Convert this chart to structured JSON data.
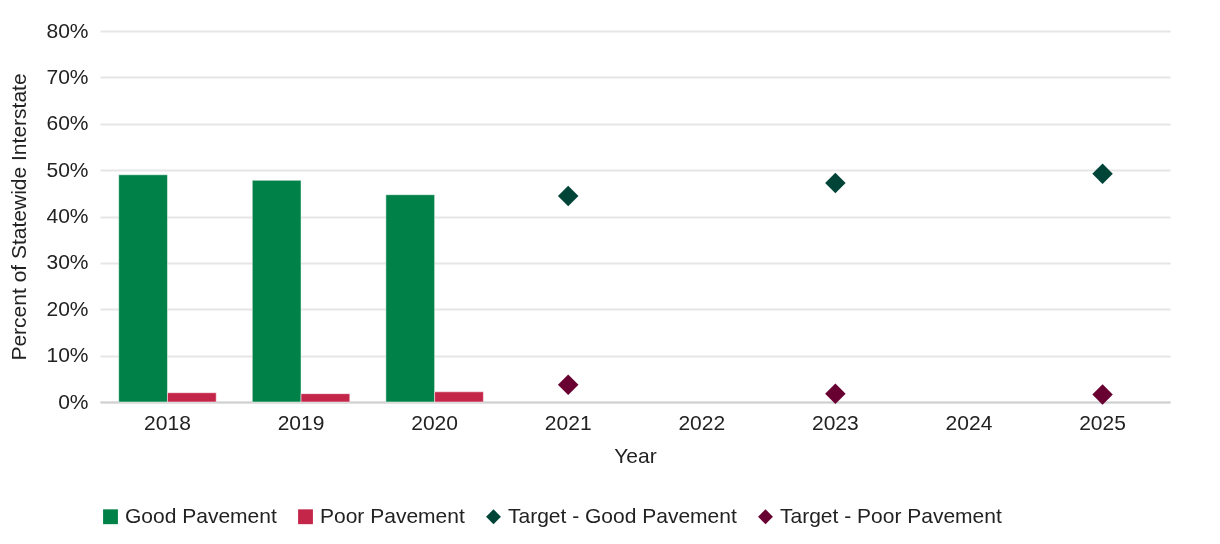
{
  "chart_data": {
    "type": "bar",
    "xlabel": "Year",
    "ylabel": "Percent of Statewide Interstate",
    "categories": [
      "2018",
      "2019",
      "2020",
      "2021",
      "2022",
      "2023",
      "2024",
      "2025"
    ],
    "series": [
      {
        "name": "Good Pavement",
        "color": "#008148",
        "values": [
          49.0,
          47.8,
          44.7,
          null,
          null,
          null,
          null,
          null
        ]
      },
      {
        "name": "Poor Pavement",
        "color": "#c4264a",
        "values": [
          2.0,
          1.8,
          2.2,
          null,
          null,
          null,
          null,
          null
        ]
      },
      {
        "name": "Target - Good Pavement",
        "type": "scatter",
        "color": "#004438",
        "values": [
          null,
          null,
          null,
          44.4,
          null,
          47.2,
          null,
          49.2
        ]
      },
      {
        "name": "Target - Poor Pavement",
        "type": "scatter",
        "color": "#680032",
        "values": [
          null,
          null,
          null,
          3.7,
          null,
          1.8,
          null,
          1.6
        ]
      }
    ],
    "ylim": [
      0,
      80
    ],
    "yticks": [
      {
        "value": 0,
        "label": "0%"
      },
      {
        "value": 10,
        "label": "10%"
      },
      {
        "value": 20,
        "label": "20%"
      },
      {
        "value": 30,
        "label": "30%"
      },
      {
        "value": 40,
        "label": "40%"
      },
      {
        "value": 50,
        "label": "50%"
      },
      {
        "value": 60,
        "label": "60%"
      },
      {
        "value": 70,
        "label": "70%"
      },
      {
        "value": 80,
        "label": "80%"
      }
    ],
    "grid": "y",
    "legend": "bottom",
    "marker": "diamond"
  }
}
